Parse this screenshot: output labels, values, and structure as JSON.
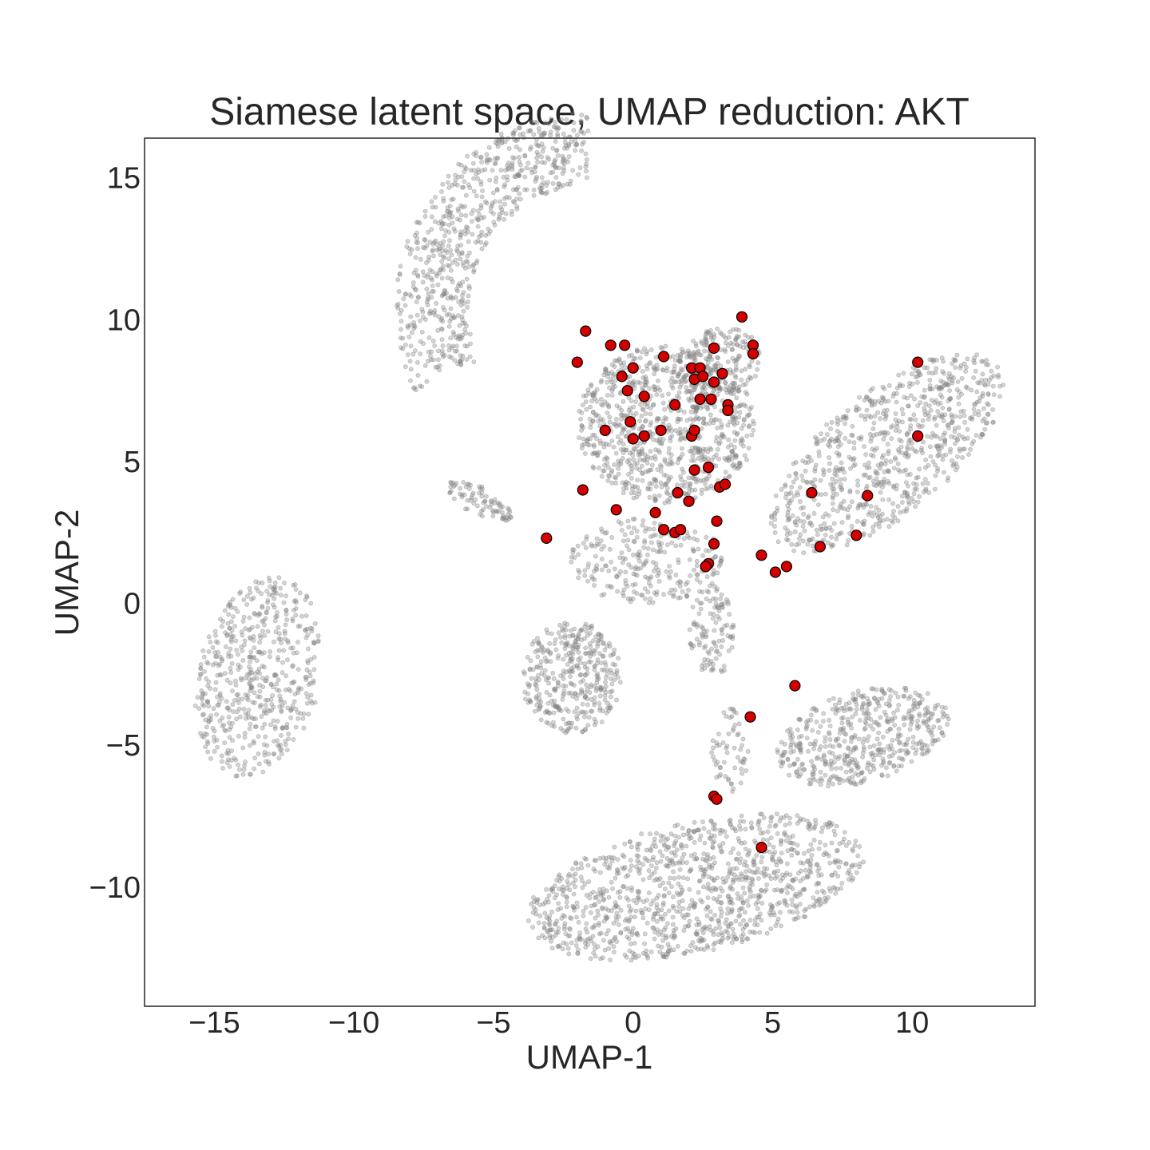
{
  "chart_data": {
    "type": "scatter",
    "title": "Siamese latent space, UMAP reduction: AKT",
    "xlabel": "UMAP-1",
    "ylabel": "UMAP-2",
    "xlim": [
      -17.5,
      14.4
    ],
    "ylim": [
      -14.2,
      16.4
    ],
    "xticks": [
      -15,
      -10,
      -5,
      0,
      5,
      10
    ],
    "xtick_labels": [
      "−15",
      "−10",
      "−5",
      "0",
      "5",
      "10"
    ],
    "yticks": [
      -10,
      -5,
      0,
      5,
      10,
      15
    ],
    "ytick_labels": [
      "−10",
      "−5",
      "0",
      "5",
      "10",
      "15"
    ],
    "grid": false,
    "legend": "none",
    "colors": {
      "background_points": "#808080",
      "highlight_fill": "#d40000",
      "highlight_edge": "#000000",
      "frame": "#262626"
    },
    "background_clusters": [
      {
        "shape": "ellipse",
        "center": [
          -13.4,
          -2.6
        ],
        "rx": 2.2,
        "ry": 3.6,
        "angle": -15,
        "count": 550
      },
      {
        "shape": "arc",
        "center": [
          -1.6,
          10.4
        ],
        "radius": 5.6,
        "width": 2.6,
        "theta_range": [
          90,
          205
        ],
        "count": 700
      },
      {
        "shape": "ellipse",
        "center": [
          1.2,
          6.3
        ],
        "rx": 3.2,
        "ry": 2.8,
        "angle": 0,
        "count": 900
      },
      {
        "shape": "ellipse",
        "center": [
          3.1,
          8.5
        ],
        "rx": 1.6,
        "ry": 1.2,
        "angle": 20,
        "count": 200
      },
      {
        "shape": "ellipse",
        "center": [
          9.1,
          5.3
        ],
        "rx": 5.0,
        "ry": 2.2,
        "angle": 38,
        "count": 800
      },
      {
        "shape": "ellipse",
        "center": [
          -2.2,
          -2.6
        ],
        "rx": 1.8,
        "ry": 2.0,
        "angle": 0,
        "count": 380
      },
      {
        "shape": "ellipse",
        "center": [
          0.5,
          1.5
        ],
        "rx": 2.8,
        "ry": 1.5,
        "angle": 0,
        "count": 260
      },
      {
        "shape": "ellipse",
        "center": [
          2.8,
          -1.0
        ],
        "rx": 0.8,
        "ry": 1.7,
        "angle": 0,
        "count": 110
      },
      {
        "shape": "ellipse",
        "center": [
          3.5,
          -5.2
        ],
        "rx": 0.7,
        "ry": 1.5,
        "angle": 0,
        "count": 60
      },
      {
        "shape": "ellipse",
        "center": [
          8.2,
          -4.7
        ],
        "rx": 3.2,
        "ry": 1.6,
        "angle": 15,
        "count": 500
      },
      {
        "shape": "ellipse",
        "center": [
          2.2,
          -10.0
        ],
        "rx": 6.2,
        "ry": 2.3,
        "angle": 12,
        "count": 1150
      },
      {
        "shape": "ellipse",
        "center": [
          -5.5,
          3.6
        ],
        "rx": 1.3,
        "ry": 0.5,
        "angle": -30,
        "count": 80
      }
    ],
    "series": [
      {
        "points": [
          [
            -1.7,
            9.6
          ],
          [
            -0.8,
            9.1
          ],
          [
            -0.3,
            9.1
          ],
          [
            1.1,
            8.7
          ],
          [
            -2.0,
            8.5
          ],
          [
            -0.4,
            8.0
          ],
          [
            0.0,
            8.3
          ],
          [
            2.1,
            8.3
          ],
          [
            2.4,
            8.3
          ],
          [
            2.9,
            9.0
          ],
          [
            2.2,
            7.9
          ],
          [
            2.5,
            8.0
          ],
          [
            2.9,
            7.8
          ],
          [
            3.2,
            8.1
          ],
          [
            3.9,
            10.1
          ],
          [
            4.3,
            9.1
          ],
          [
            4.3,
            8.8
          ],
          [
            -0.2,
            7.5
          ],
          [
            0.4,
            7.3
          ],
          [
            1.5,
            7.0
          ],
          [
            2.4,
            7.2
          ],
          [
            2.8,
            7.2
          ],
          [
            3.4,
            7.0
          ],
          [
            3.4,
            6.8
          ],
          [
            -1.0,
            6.1
          ],
          [
            -0.1,
            6.4
          ],
          [
            0.0,
            5.8
          ],
          [
            0.4,
            5.9
          ],
          [
            1.0,
            6.1
          ],
          [
            2.1,
            5.9
          ],
          [
            2.2,
            6.1
          ],
          [
            10.2,
            8.5
          ],
          [
            10.2,
            5.9
          ],
          [
            -1.8,
            4.0
          ],
          [
            2.2,
            4.7
          ],
          [
            2.7,
            4.8
          ],
          [
            1.6,
            3.9
          ],
          [
            3.1,
            4.1
          ],
          [
            3.3,
            4.2
          ],
          [
            6.4,
            3.9
          ],
          [
            8.4,
            3.8
          ],
          [
            -0.6,
            3.3
          ],
          [
            0.8,
            3.2
          ],
          [
            2.0,
            3.6
          ],
          [
            3.0,
            2.9
          ],
          [
            1.1,
            2.6
          ],
          [
            1.5,
            2.5
          ],
          [
            1.7,
            2.6
          ],
          [
            -3.1,
            2.3
          ],
          [
            2.9,
            2.1
          ],
          [
            8.0,
            2.4
          ],
          [
            6.7,
            2.0
          ],
          [
            4.6,
            1.7
          ],
          [
            2.7,
            1.4
          ],
          [
            2.6,
            1.3
          ],
          [
            5.1,
            1.1
          ],
          [
            5.5,
            1.3
          ],
          [
            5.8,
            -2.9
          ],
          [
            4.2,
            -4.0
          ],
          [
            2.9,
            -6.8
          ],
          [
            3.0,
            -6.9
          ],
          [
            4.6,
            -8.6
          ]
        ]
      }
    ]
  }
}
